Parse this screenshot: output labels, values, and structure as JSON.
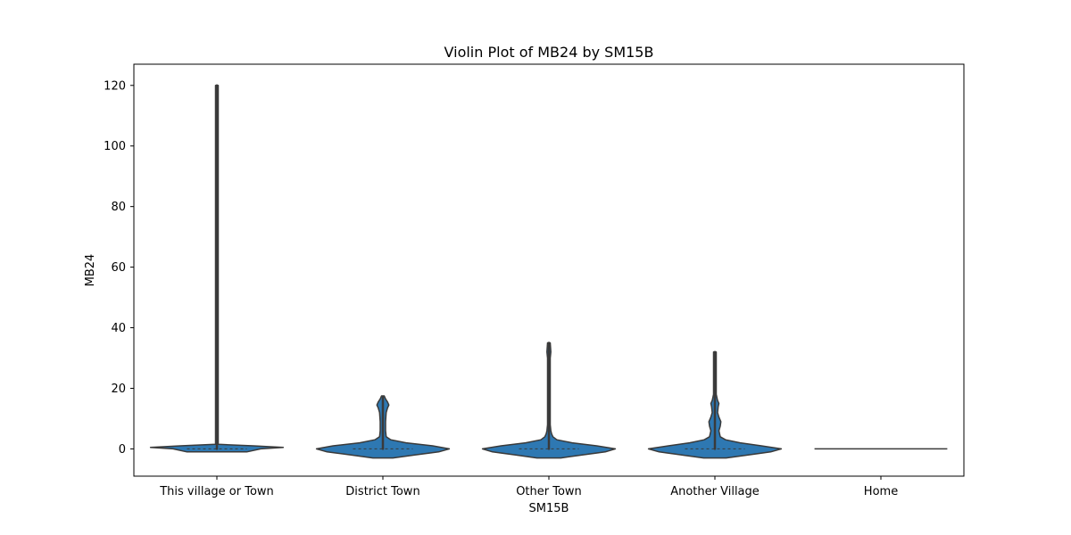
{
  "chart_data": {
    "type": "violin",
    "title": "Violin Plot of MB24 by SM15B",
    "xlabel": "SM15B",
    "ylabel": "MB24",
    "ylim": [
      -9,
      127
    ],
    "yticks": [
      0,
      20,
      40,
      60,
      80,
      100,
      120
    ],
    "grid": false,
    "fill_color": "#2e78b2",
    "line_color": "#3a3a3a",
    "categories": [
      {
        "label": "This village or Town",
        "min": 0,
        "max": 120,
        "profile": [
          [
            -1,
            0.45
          ],
          [
            0,
            0.66
          ],
          [
            0.5,
            1.0
          ],
          [
            1,
            0.55
          ],
          [
            1.5,
            0.02
          ],
          [
            120,
            0.02
          ]
        ]
      },
      {
        "label": "District Town",
        "min": 0,
        "max": 17,
        "profile": [
          [
            -3,
            0.15
          ],
          [
            -2,
            0.48
          ],
          [
            -1,
            0.84
          ],
          [
            0,
            1.0
          ],
          [
            1,
            0.75
          ],
          [
            2,
            0.35
          ],
          [
            3,
            0.12
          ],
          [
            4,
            0.05
          ],
          [
            6,
            0.04
          ],
          [
            9,
            0.04
          ],
          [
            12,
            0.05
          ],
          [
            13.5,
            0.07
          ],
          [
            14.5,
            0.09
          ],
          [
            15.5,
            0.07
          ],
          [
            16.5,
            0.04
          ],
          [
            17.5,
            0.02
          ]
        ]
      },
      {
        "label": "Other Town",
        "min": 0,
        "max": 35,
        "profile": [
          [
            -3,
            0.18
          ],
          [
            -2,
            0.5
          ],
          [
            -1,
            0.85
          ],
          [
            0,
            1.0
          ],
          [
            1,
            0.72
          ],
          [
            2,
            0.35
          ],
          [
            3,
            0.12
          ],
          [
            4,
            0.06
          ],
          [
            5,
            0.04
          ],
          [
            6,
            0.03
          ],
          [
            8,
            0.02
          ],
          [
            30,
            0.02
          ],
          [
            32,
            0.03
          ],
          [
            35,
            0.02
          ]
        ]
      },
      {
        "label": "Another Village",
        "min": 0,
        "max": 32,
        "profile": [
          [
            -3,
            0.17
          ],
          [
            -2,
            0.5
          ],
          [
            -1,
            0.84
          ],
          [
            0,
            1.0
          ],
          [
            1,
            0.7
          ],
          [
            2,
            0.38
          ],
          [
            3,
            0.16
          ],
          [
            4,
            0.08
          ],
          [
            6,
            0.06
          ],
          [
            7.5,
            0.08
          ],
          [
            9,
            0.09
          ],
          [
            10.5,
            0.06
          ],
          [
            12,
            0.04
          ],
          [
            14,
            0.05
          ],
          [
            15,
            0.06
          ],
          [
            16,
            0.04
          ],
          [
            18,
            0.02
          ],
          [
            32,
            0.02
          ]
        ]
      },
      {
        "label": "Home",
        "min": 0,
        "max": 0,
        "profile": []
      }
    ]
  }
}
